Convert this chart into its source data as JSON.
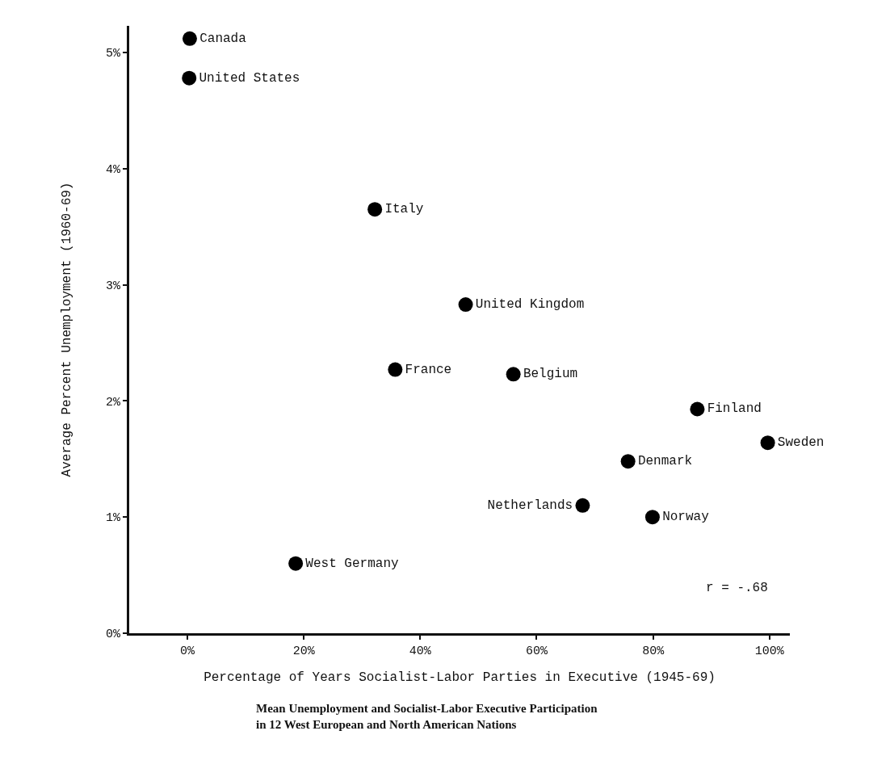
{
  "chart_data": {
    "type": "scatter",
    "xlabel": "Percentage of Years Socialist-Labor Parties in Executive (1945-69)",
    "ylabel": "Average Percent Unemployment (1960-69)",
    "series": [
      {
        "name": "Canada",
        "color": "#000000",
        "x": [
          0.4
        ],
        "values": [
          5.12
        ]
      },
      {
        "name": "United States",
        "color": "#000000",
        "x": [
          0.3
        ],
        "values": [
          4.78
        ]
      },
      {
        "name": "Italy",
        "color": "#000000",
        "x": [
          32.2
        ],
        "values": [
          3.65
        ]
      },
      {
        "name": "United Kingdom",
        "color": "#000000",
        "x": [
          47.8
        ],
        "values": [
          2.83
        ]
      },
      {
        "name": "France",
        "color": "#000000",
        "x": [
          35.7
        ],
        "values": [
          2.27
        ]
      },
      {
        "name": "Belgium",
        "color": "#000000",
        "x": [
          56.0
        ],
        "values": [
          2.23
        ]
      },
      {
        "name": "Finland",
        "color": "#000000",
        "x": [
          87.6
        ],
        "values": [
          1.93
        ]
      },
      {
        "name": "Sweden",
        "color": "#000000",
        "x": [
          99.7
        ],
        "values": [
          1.64
        ]
      },
      {
        "name": "Denmark",
        "color": "#000000",
        "x": [
          75.7
        ],
        "values": [
          1.48
        ]
      },
      {
        "name": "Netherlands",
        "color": "#000000",
        "x": [
          67.9
        ],
        "values": [
          1.1
        ]
      },
      {
        "name": "Norway",
        "color": "#000000",
        "x": [
          79.9
        ],
        "values": [
          1.0
        ]
      },
      {
        "name": "West Germany",
        "color": "#000000",
        "x": [
          18.6
        ],
        "values": [
          0.6
        ]
      }
    ],
    "xlim": [
      -10,
      103.5
    ],
    "ylim": [
      0,
      5.23
    ],
    "xticks": [
      {
        "value": 0,
        "label": "0%"
      },
      {
        "value": 20,
        "label": "20%"
      },
      {
        "value": 40,
        "label": "40%"
      },
      {
        "value": 60,
        "label": "60%"
      },
      {
        "value": 80,
        "label": "80%"
      },
      {
        "value": 100,
        "label": "100%"
      }
    ],
    "yticks": [
      {
        "value": 0,
        "label": "0%"
      },
      {
        "value": 1,
        "label": "1%"
      },
      {
        "value": 2,
        "label": "2%"
      },
      {
        "value": 3,
        "label": "3%"
      },
      {
        "value": 4,
        "label": "4%"
      },
      {
        "value": 5,
        "label": "5%"
      }
    ],
    "marker": "circle",
    "legend": false,
    "grid": false,
    "annotations": [
      "r = -.68",
      "Mean Unemployment and Socialist-Labor Executive Participation\nin 12 West European and North American Nations"
    ]
  }
}
